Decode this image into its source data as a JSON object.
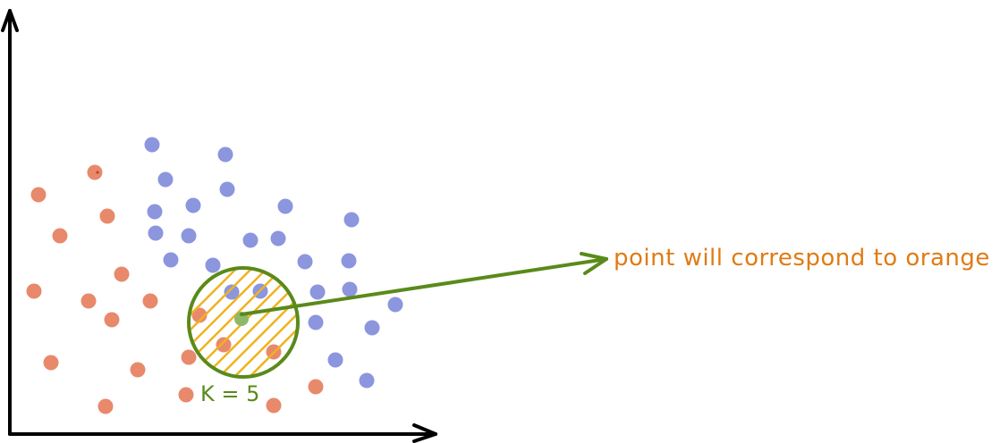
{
  "annotation": {
    "text": "point will correspond to orange",
    "color": "#e07b14"
  },
  "k_label": {
    "text": "K = 5",
    "color": "#5a8a1a"
  },
  "colors": {
    "axis": "#000000",
    "orange_class": "#e8896c",
    "blue_class": "#8b96de",
    "query_point": "#8fb86a",
    "circle": "#5a8a1a",
    "hatch": "#f0b21e",
    "arrow": "#5a8a1a"
  },
  "classes": [
    {
      "name": "orange",
      "color_key": "orange_class"
    },
    {
      "name": "blue",
      "color_key": "blue_class"
    }
  ]
}
